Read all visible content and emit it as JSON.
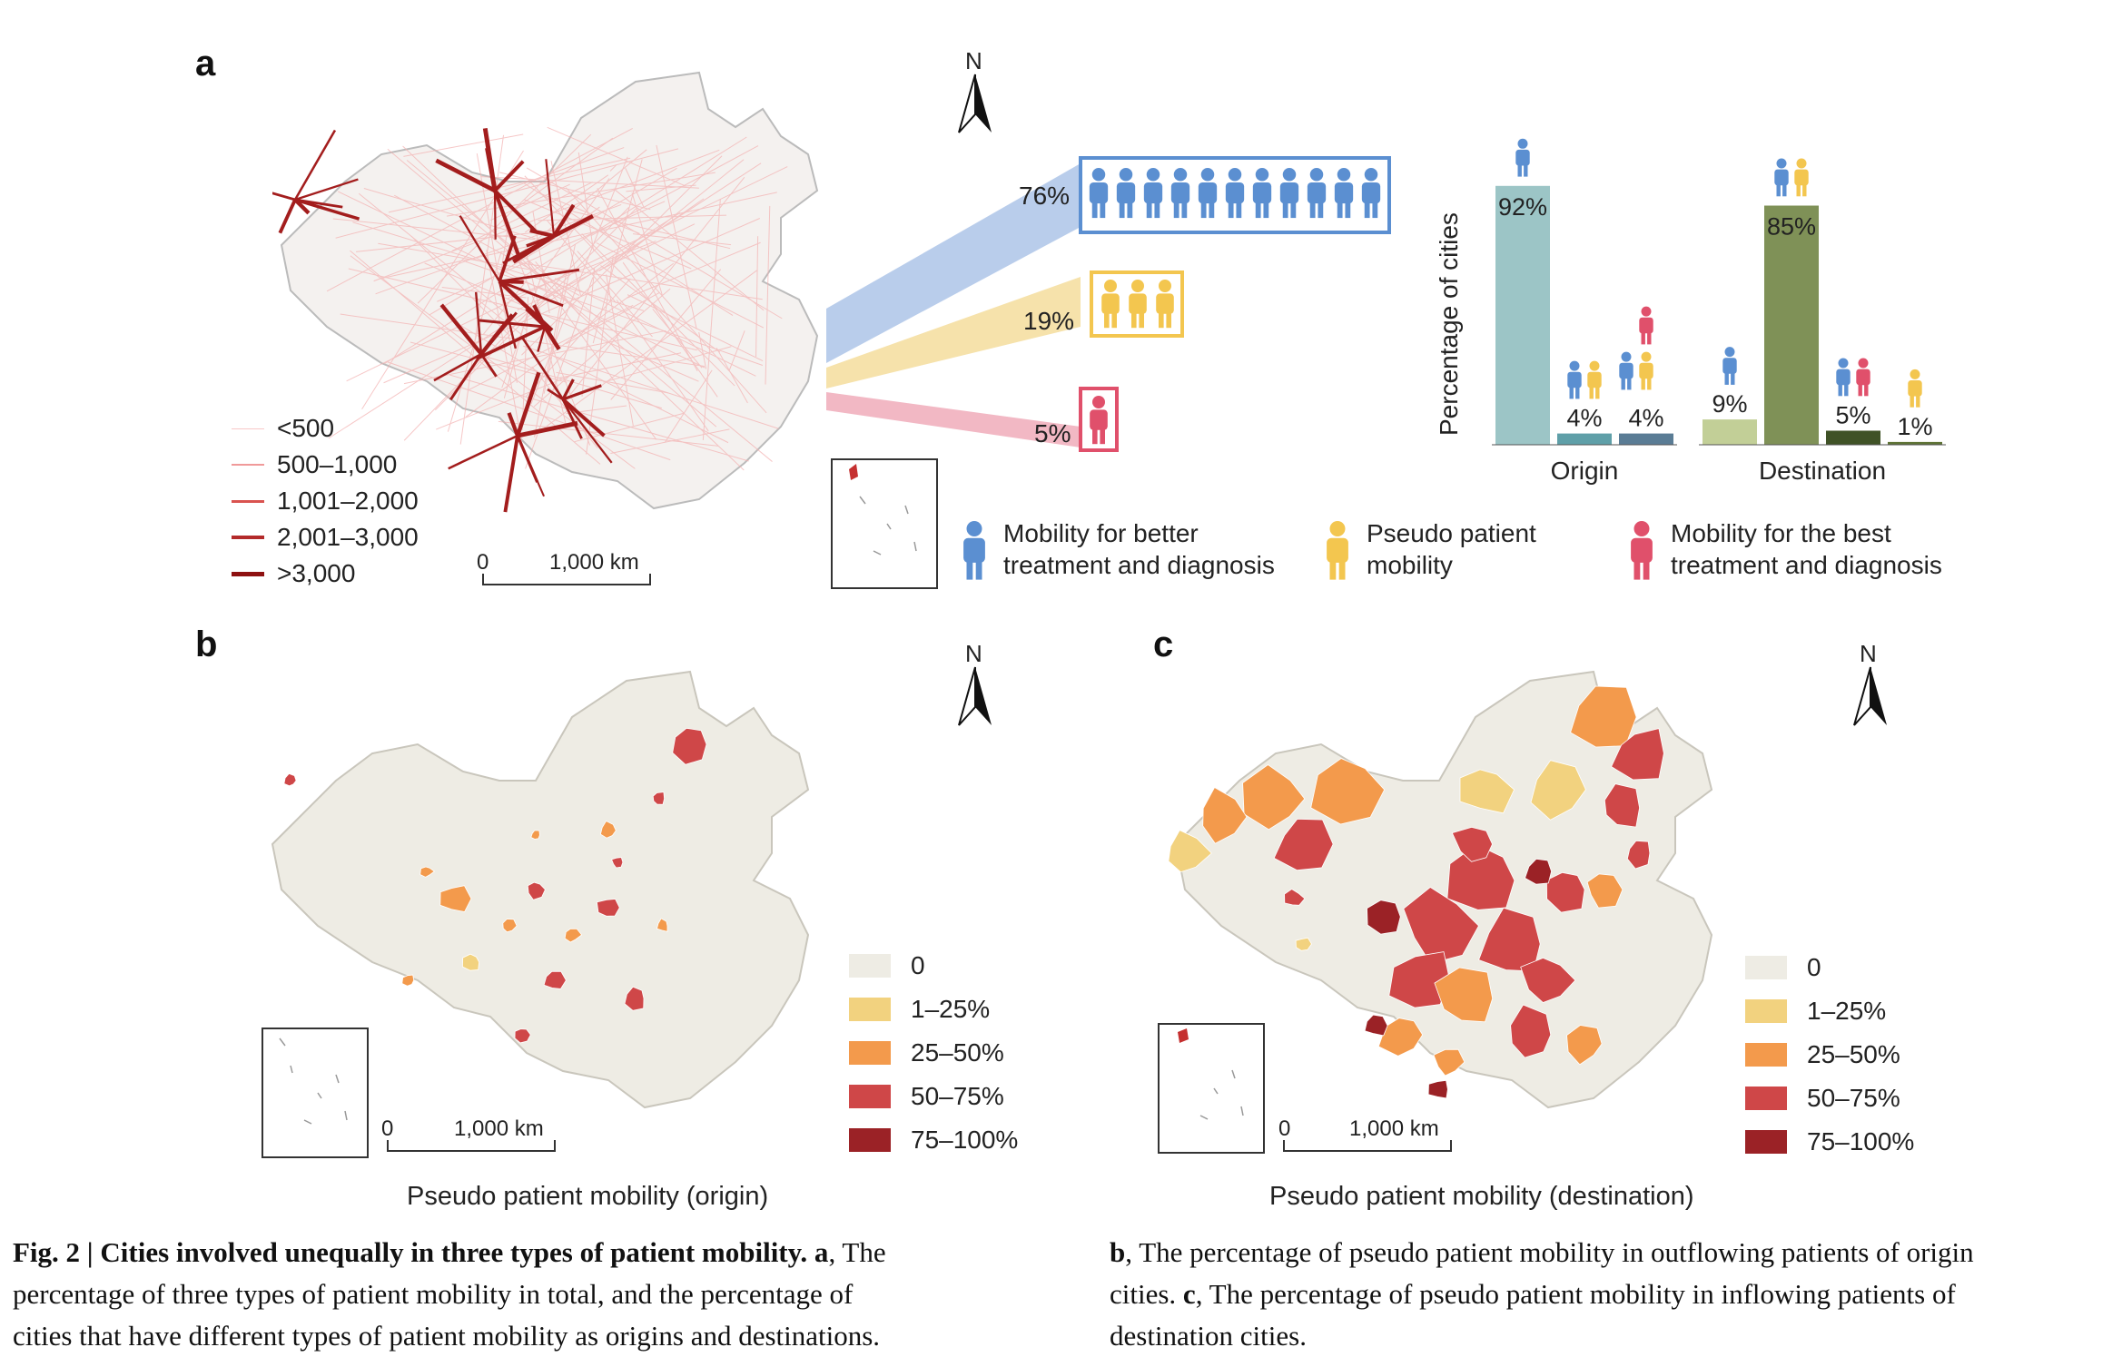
{
  "panel_a": {
    "label": "a",
    "north": "N",
    "flow_legend": [
      "<500",
      "500–1,000",
      "1,001–2,000",
      "2,001–3,000",
      ">3,000"
    ],
    "scale_zero": "0",
    "scale_label": "1,000 km",
    "shares": [
      {
        "pct": "76%",
        "value": 76,
        "type": "better",
        "color": "#5b8fd1"
      },
      {
        "pct": "19%",
        "value": 19,
        "type": "pseudo",
        "color": "#f3c64f"
      },
      {
        "pct": "5%",
        "value": 5,
        "type": "best",
        "color": "#e0506b"
      }
    ],
    "type_legend": [
      {
        "line1": "Mobility for better",
        "line2": "treatment and diagnosis",
        "icon": "blue-person-icon"
      },
      {
        "line1": "Pseudo patient",
        "line2": "mobility",
        "icon": "yellow-person-icon"
      },
      {
        "line1": "Mobility for the best",
        "line2": "treatment and diagnosis",
        "icon": "red-person-icon"
      }
    ]
  },
  "chart_data": {
    "type": "bar",
    "ylabel": "Percentage of cities",
    "groups": [
      {
        "name": "Origin",
        "bars": [
          {
            "label": "92%",
            "value": 92,
            "color": "#9cc5c6"
          },
          {
            "label": "4%",
            "value": 4,
            "color": "#5f9fa8"
          },
          {
            "label": "4%",
            "value": 4,
            "color": "#5a7c95"
          }
        ]
      },
      {
        "name": "Destination",
        "bars": [
          {
            "label": "9%",
            "value": 9,
            "color": "#c2cf97"
          },
          {
            "label": "85%",
            "value": 85,
            "color": "#7f9157"
          },
          {
            "label": "5%",
            "value": 5,
            "color": "#3f5226"
          },
          {
            "label": "1%",
            "value": 1,
            "color": "#5f7436"
          }
        ]
      }
    ],
    "ylim": [
      0,
      100
    ]
  },
  "panel_b": {
    "label": "b",
    "north": "N",
    "title": "Pseudo patient mobility (origin)",
    "scale_zero": "0",
    "scale_label": "1,000 km"
  },
  "panel_c": {
    "label": "c",
    "north": "N",
    "title": "Pseudo patient mobility (destination)",
    "scale_zero": "0",
    "scale_label": "1,000 km"
  },
  "choropleth_legend": [
    {
      "label": "0",
      "color": "#eeece4"
    },
    {
      "label": "1–25%",
      "color": "#f2d27f"
    },
    {
      "label": "25–50%",
      "color": "#f39a4c"
    },
    {
      "label": "50–75%",
      "color": "#cf4748"
    },
    {
      "label": "75–100%",
      "color": "#9b2226"
    }
  ],
  "caption": {
    "fig": "Fig. 2 | ",
    "title": "Cities involved unequally in three types of patient mobility. a",
    "left_rest1": ", The",
    "left_line2": "percentage of three types of patient mobility in total, and the percentage of",
    "left_line3": "cities that have different types of patient mobility as origins and destinations.",
    "right_b": "b",
    "right_line1": ", The percentage of pseudo patient mobility in outflowing patients of origin",
    "right_line2a": "cities. ",
    "right_c": "c",
    "right_line2b": ", The percentage of pseudo patient mobility in inflowing patients of",
    "right_line3": "destination cities."
  }
}
